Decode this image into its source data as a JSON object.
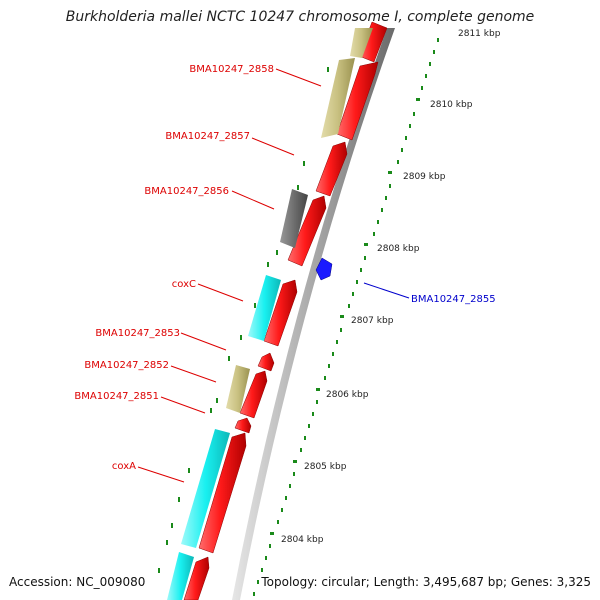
{
  "title": "Burkholderia mallei NCTC 10247 chromosome I, complete genome",
  "footer": {
    "accession": "Accession: NC_009080",
    "summary": "Topology: circular; Length: 3,495,687 bp; Genes: 3,325"
  },
  "ticks": [
    "2811 kbp",
    "2810 kbp",
    "2809 kbp",
    "2808 kbp",
    "2807 kbp",
    "2806 kbp",
    "2805 kbp",
    "2804 kbp"
  ],
  "gene_labels": [
    {
      "name": "BMA10247_2858",
      "color": "#dd0000"
    },
    {
      "name": "BMA10247_2857",
      "color": "#dd0000"
    },
    {
      "name": "BMA10247_2856",
      "color": "#dd0000"
    },
    {
      "name": "coxC",
      "color": "#dd0000"
    },
    {
      "name": "BMA10247_2853",
      "color": "#dd0000"
    },
    {
      "name": "BMA10247_2852",
      "color": "#dd0000"
    },
    {
      "name": "BMA10247_2851",
      "color": "#dd0000"
    },
    {
      "name": "coxA",
      "color": "#dd0000"
    },
    {
      "name": "BMA10247_2855",
      "color": "#0000cc"
    }
  ],
  "colors": {
    "cds": "#ff1a1a",
    "olive": "#c8c080",
    "gray": "#6e6e6e",
    "cyan": "#19f0f0",
    "blue": "#1a1aff",
    "tick": "#1a8a1a",
    "backbone": "#a8a8a8"
  }
}
